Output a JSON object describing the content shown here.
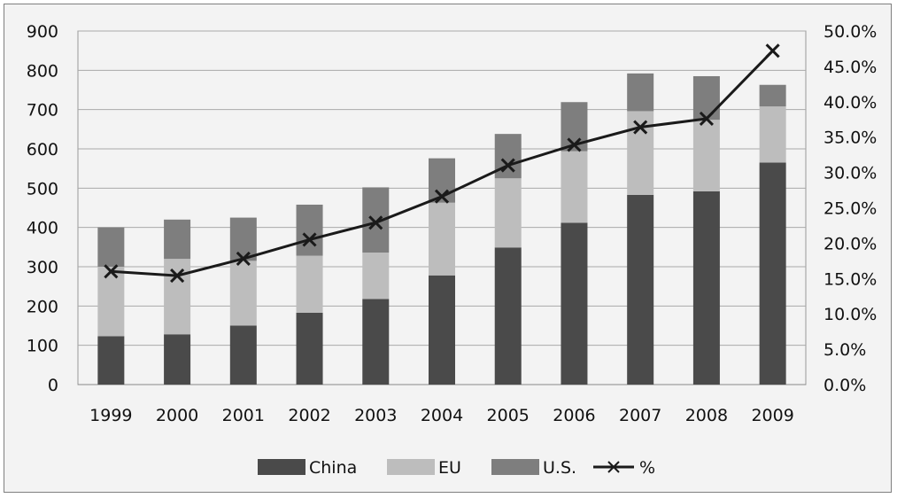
{
  "chart_data": {
    "type": "bar",
    "stacked": true,
    "categories": [
      "1999",
      "2000",
      "2001",
      "2002",
      "2003",
      "2004",
      "2005",
      "2006",
      "2007",
      "2008",
      "2009"
    ],
    "series": [
      {
        "name": "China",
        "axis": "left",
        "color": "#4a4a4a",
        "values": [
          123,
          128,
          150,
          183,
          218,
          278,
          349,
          412,
          483,
          492,
          565
        ]
      },
      {
        "name": "EU",
        "axis": "left",
        "color": "#bdbdbd",
        "values": [
          177,
          192,
          165,
          145,
          118,
          185,
          176,
          182,
          213,
          182,
          143
        ]
      },
      {
        "name": "U.S.",
        "axis": "left",
        "color": "#7e7e7e",
        "values": [
          100,
          100,
          110,
          130,
          166,
          113,
          113,
          125,
          96,
          111,
          55
        ]
      },
      {
        "name": "%",
        "type": "line",
        "axis": "right",
        "color": "#1a1a1a",
        "marker": "x",
        "values": [
          16.0,
          15.4,
          17.8,
          20.5,
          22.9,
          26.6,
          31.0,
          33.9,
          36.4,
          37.6,
          47.2
        ]
      }
    ],
    "y_left": {
      "min": 0,
      "max": 900,
      "ticks": [
        "0",
        "100",
        "200",
        "300",
        "400",
        "500",
        "600",
        "700",
        "800",
        "900"
      ]
    },
    "y_right": {
      "min": 0,
      "max": 50,
      "ticks": [
        "0.0%",
        "5.0%",
        "10.0%",
        "15.0%",
        "20.0%",
        "25.0%",
        "30.0%",
        "35.0%",
        "40.0%",
        "45.0%",
        "50.0%"
      ]
    },
    "grid": true,
    "legend_position": "bottom"
  }
}
